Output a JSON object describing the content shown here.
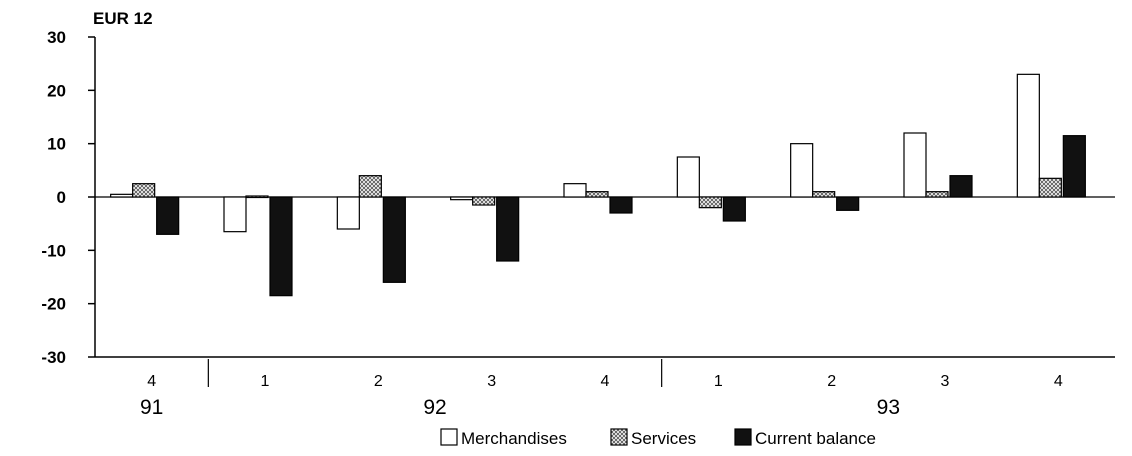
{
  "chart_data": {
    "type": "bar",
    "unit_label": "EUR 12",
    "categories": [
      "4",
      "1",
      "2",
      "3",
      "4",
      "1",
      "2",
      "3",
      "4"
    ],
    "year_groups": [
      {
        "label": "91",
        "quarters": [
          "4"
        ]
      },
      {
        "label": "92",
        "quarters": [
          "1",
          "2",
          "3",
          "4"
        ]
      },
      {
        "label": "93",
        "quarters": [
          "1",
          "2",
          "3",
          "4"
        ]
      }
    ],
    "series": [
      {
        "name": "Merchandises",
        "values": [
          0.5,
          -6.5,
          -6.0,
          -0.5,
          2.5,
          7.5,
          10.0,
          12.0,
          23.0
        ],
        "fill": "#ffffff"
      },
      {
        "name": "Services",
        "values": [
          2.5,
          0,
          4.0,
          -1.5,
          1.0,
          -2.0,
          1.0,
          1.0,
          3.5
        ],
        "fill": "hatch"
      },
      {
        "name": "Current balance",
        "values": [
          -7.0,
          -18.5,
          -16.0,
          -12.0,
          -3.0,
          -4.5,
          -2.5,
          4.0,
          11.5
        ],
        "fill": "#111111"
      }
    ],
    "yticks": [
      "30",
      "20",
      "10",
      "0",
      "-10",
      "-20",
      "-30"
    ],
    "ylim": [
      -30,
      30
    ],
    "grid": false,
    "legend_position": "bottom"
  },
  "colors": {
    "bar_stroke": "#000000",
    "dark": "#111111",
    "light": "#ffffff"
  }
}
